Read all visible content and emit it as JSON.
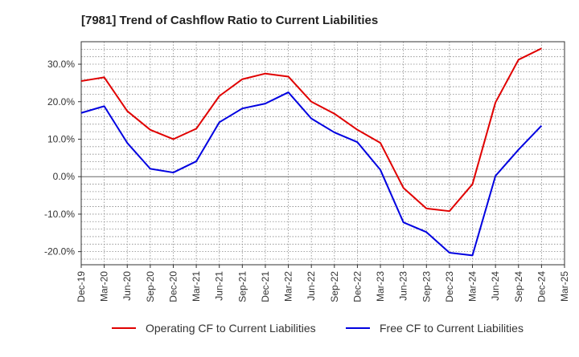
{
  "chart_data": {
    "type": "line",
    "title": "[7981]  Trend of Cashflow Ratio to Current Liabilities",
    "xlabel": "",
    "ylabel": "",
    "x_ticks": [
      "Dec-19",
      "Mar-20",
      "Jun-20",
      "Sep-20",
      "Dec-20",
      "Mar-21",
      "Jun-21",
      "Sep-21",
      "Dec-21",
      "Mar-22",
      "Jun-22",
      "Sep-22",
      "Dec-22",
      "Mar-23",
      "Jun-23",
      "Sep-23",
      "Dec-23",
      "Mar-24",
      "Jun-24",
      "Sep-24",
      "Dec-24",
      "Mar-25"
    ],
    "categories": [
      "Dec-19",
      "Mar-20",
      "Jun-20",
      "Sep-20",
      "Dec-20",
      "Mar-21",
      "Jun-21",
      "Sep-21",
      "Dec-21",
      "Mar-22",
      "Jun-22",
      "Sep-22",
      "Dec-22",
      "Mar-23",
      "Jun-23",
      "Sep-23",
      "Dec-23",
      "Mar-24",
      "Jun-24",
      "Sep-24",
      "Dec-24"
    ],
    "y_ticks": [
      "30.0%",
      "20.0%",
      "10.0%",
      "0.0%",
      "-10.0%",
      "-20.0%"
    ],
    "y_tick_values": [
      30,
      20,
      10,
      0,
      -10,
      -20
    ],
    "ylim": [
      -23.5,
      36
    ],
    "grid": true,
    "legend_position": "bottom",
    "series": [
      {
        "name": "Operating CF to Current Liabilities",
        "color": "#e00000",
        "values": [
          25.5,
          26.5,
          17.5,
          12.5,
          10.0,
          12.8,
          21.5,
          26.0,
          27.5,
          26.7,
          20.0,
          16.8,
          12.5,
          9.0,
          -3.0,
          -8.5,
          -9.2,
          -2.0,
          19.8,
          31.2,
          34.2
        ]
      },
      {
        "name": "Free CF to Current Liabilities",
        "color": "#0000e0",
        "values": [
          17.0,
          18.8,
          9.0,
          2.1,
          1.1,
          4.1,
          14.5,
          18.2,
          19.5,
          22.5,
          15.5,
          11.8,
          9.2,
          1.8,
          -12.2,
          -14.8,
          -20.3,
          -21.0,
          0.2,
          7.2,
          13.6
        ]
      }
    ]
  }
}
